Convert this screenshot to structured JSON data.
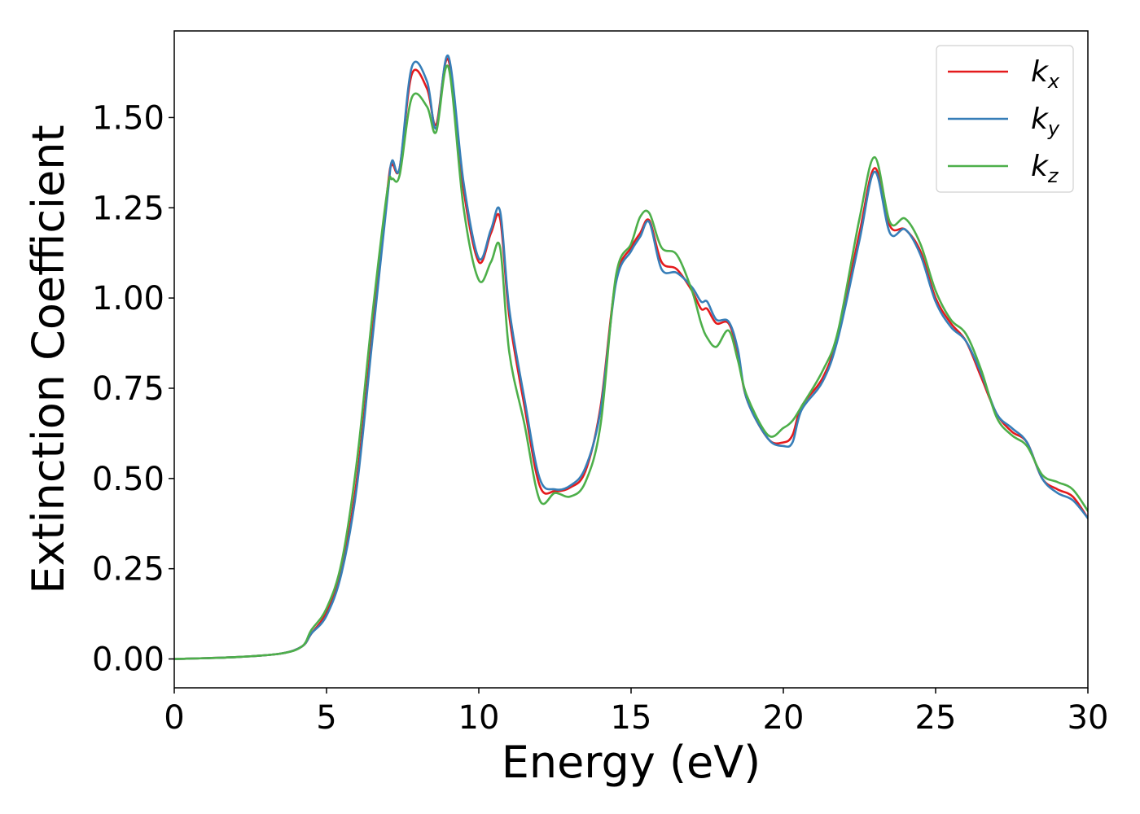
{
  "chart_data": {
    "type": "line",
    "xlabel": "Energy (eV)",
    "ylabel": "Extinction Coefficient",
    "xlim": [
      0,
      30
    ],
    "ylim": [
      -0.08,
      1.74
    ],
    "x_ticks": [
      0,
      5,
      10,
      15,
      20,
      25,
      30
    ],
    "x_tick_labels": [
      "0",
      "5",
      "10",
      "15",
      "20",
      "25",
      "30"
    ],
    "y_ticks": [
      0.0,
      0.25,
      0.5,
      0.75,
      1.0,
      1.25,
      1.5
    ],
    "y_tick_labels": [
      "0.00",
      "0.25",
      "0.50",
      "0.75",
      "1.00",
      "1.25",
      "1.50"
    ],
    "grid": false,
    "legend_position": "top-right",
    "series": [
      {
        "name": "kx",
        "label_main": "k",
        "label_sub": "x",
        "color": "#e41a1c",
        "points": [
          [
            0,
            0.0
          ],
          [
            2,
            0.005
          ],
          [
            3.5,
            0.015
          ],
          [
            4.2,
            0.035
          ],
          [
            4.5,
            0.07
          ],
          [
            5,
            0.13
          ],
          [
            5.5,
            0.25
          ],
          [
            6,
            0.5
          ],
          [
            6.5,
            0.9
          ],
          [
            7,
            1.3
          ],
          [
            7.15,
            1.37
          ],
          [
            7.4,
            1.36
          ],
          [
            7.8,
            1.62
          ],
          [
            8.3,
            1.58
          ],
          [
            8.6,
            1.48
          ],
          [
            9.0,
            1.66
          ],
          [
            9.5,
            1.3
          ],
          [
            10.0,
            1.1
          ],
          [
            10.4,
            1.18
          ],
          [
            10.7,
            1.22
          ],
          [
            11.0,
            0.95
          ],
          [
            11.5,
            0.7
          ],
          [
            12.0,
            0.48
          ],
          [
            12.5,
            0.465
          ],
          [
            13.0,
            0.475
          ],
          [
            13.5,
            0.52
          ],
          [
            14.0,
            0.7
          ],
          [
            14.5,
            1.05
          ],
          [
            15.0,
            1.14
          ],
          [
            15.3,
            1.18
          ],
          [
            15.6,
            1.215
          ],
          [
            16.0,
            1.1
          ],
          [
            16.5,
            1.08
          ],
          [
            17.0,
            1.02
          ],
          [
            17.3,
            0.97
          ],
          [
            17.5,
            0.97
          ],
          [
            17.8,
            0.93
          ],
          [
            18.2,
            0.93
          ],
          [
            18.5,
            0.85
          ],
          [
            18.8,
            0.72
          ],
          [
            19.5,
            0.61
          ],
          [
            20.0,
            0.6
          ],
          [
            20.3,
            0.62
          ],
          [
            20.6,
            0.7
          ],
          [
            21.3,
            0.78
          ],
          [
            21.8,
            0.9
          ],
          [
            22.5,
            1.18
          ],
          [
            23.0,
            1.36
          ],
          [
            23.5,
            1.2
          ],
          [
            24.0,
            1.19
          ],
          [
            24.5,
            1.13
          ],
          [
            25.0,
            1.0
          ],
          [
            25.5,
            0.93
          ],
          [
            26.0,
            0.88
          ],
          [
            26.5,
            0.78
          ],
          [
            27.0,
            0.68
          ],
          [
            27.5,
            0.63
          ],
          [
            28.0,
            0.6
          ],
          [
            28.5,
            0.5
          ],
          [
            29.0,
            0.47
          ],
          [
            29.5,
            0.45
          ],
          [
            30.0,
            0.39
          ]
        ]
      },
      {
        "name": "ky",
        "label_main": "k",
        "label_sub": "y",
        "color": "#377eb8",
        "points": [
          [
            0,
            0.0
          ],
          [
            2,
            0.005
          ],
          [
            3.5,
            0.015
          ],
          [
            4.2,
            0.035
          ],
          [
            4.5,
            0.07
          ],
          [
            5,
            0.12
          ],
          [
            5.5,
            0.24
          ],
          [
            6,
            0.48
          ],
          [
            6.5,
            0.88
          ],
          [
            7,
            1.28
          ],
          [
            7.15,
            1.38
          ],
          [
            7.4,
            1.36
          ],
          [
            7.8,
            1.64
          ],
          [
            8.3,
            1.6
          ],
          [
            8.6,
            1.47
          ],
          [
            9.0,
            1.67
          ],
          [
            9.5,
            1.32
          ],
          [
            10.0,
            1.11
          ],
          [
            10.4,
            1.19
          ],
          [
            10.7,
            1.24
          ],
          [
            11.0,
            0.97
          ],
          [
            11.5,
            0.72
          ],
          [
            12.0,
            0.5
          ],
          [
            12.5,
            0.47
          ],
          [
            13.0,
            0.48
          ],
          [
            13.5,
            0.53
          ],
          [
            14.0,
            0.69
          ],
          [
            14.5,
            1.04
          ],
          [
            15.0,
            1.13
          ],
          [
            15.3,
            1.17
          ],
          [
            15.6,
            1.21
          ],
          [
            16.0,
            1.08
          ],
          [
            16.5,
            1.07
          ],
          [
            17.0,
            1.03
          ],
          [
            17.3,
            0.99
          ],
          [
            17.5,
            0.99
          ],
          [
            17.8,
            0.94
          ],
          [
            18.2,
            0.935
          ],
          [
            18.5,
            0.86
          ],
          [
            18.8,
            0.72
          ],
          [
            19.5,
            0.61
          ],
          [
            20.0,
            0.59
          ],
          [
            20.3,
            0.6
          ],
          [
            20.6,
            0.69
          ],
          [
            21.3,
            0.77
          ],
          [
            21.8,
            0.89
          ],
          [
            22.5,
            1.16
          ],
          [
            23.0,
            1.35
          ],
          [
            23.5,
            1.18
          ],
          [
            24.0,
            1.19
          ],
          [
            24.5,
            1.12
          ],
          [
            25.0,
            0.99
          ],
          [
            25.5,
            0.92
          ],
          [
            26.0,
            0.88
          ],
          [
            26.5,
            0.79
          ],
          [
            27.0,
            0.68
          ],
          [
            27.5,
            0.64
          ],
          [
            28.0,
            0.6
          ],
          [
            28.5,
            0.5
          ],
          [
            29.0,
            0.46
          ],
          [
            29.5,
            0.44
          ],
          [
            30.0,
            0.39
          ]
        ]
      },
      {
        "name": "kz",
        "label_main": "k",
        "label_sub": "z",
        "color": "#4daf4a",
        "points": [
          [
            0,
            0.0
          ],
          [
            2,
            0.005
          ],
          [
            3.5,
            0.015
          ],
          [
            4.2,
            0.035
          ],
          [
            4.5,
            0.08
          ],
          [
            5,
            0.14
          ],
          [
            5.5,
            0.27
          ],
          [
            6,
            0.55
          ],
          [
            6.5,
            0.95
          ],
          [
            7,
            1.3
          ],
          [
            7.15,
            1.33
          ],
          [
            7.4,
            1.34
          ],
          [
            7.8,
            1.555
          ],
          [
            8.3,
            1.53
          ],
          [
            8.6,
            1.46
          ],
          [
            9.0,
            1.64
          ],
          [
            9.5,
            1.25
          ],
          [
            10.0,
            1.05
          ],
          [
            10.4,
            1.1
          ],
          [
            10.7,
            1.14
          ],
          [
            11.0,
            0.85
          ],
          [
            11.5,
            0.65
          ],
          [
            12.0,
            0.44
          ],
          [
            12.5,
            0.46
          ],
          [
            13.0,
            0.45
          ],
          [
            13.5,
            0.49
          ],
          [
            14.0,
            0.65
          ],
          [
            14.5,
            1.06
          ],
          [
            15.0,
            1.15
          ],
          [
            15.3,
            1.225
          ],
          [
            15.6,
            1.235
          ],
          [
            16.0,
            1.14
          ],
          [
            16.5,
            1.12
          ],
          [
            17.0,
            1.02
          ],
          [
            17.3,
            0.93
          ],
          [
            17.5,
            0.89
          ],
          [
            17.8,
            0.865
          ],
          [
            18.2,
            0.91
          ],
          [
            18.5,
            0.83
          ],
          [
            18.8,
            0.73
          ],
          [
            19.5,
            0.62
          ],
          [
            20.0,
            0.64
          ],
          [
            20.3,
            0.66
          ],
          [
            20.6,
            0.7
          ],
          [
            21.3,
            0.8
          ],
          [
            21.8,
            0.91
          ],
          [
            22.5,
            1.22
          ],
          [
            23.0,
            1.39
          ],
          [
            23.5,
            1.21
          ],
          [
            24.0,
            1.22
          ],
          [
            24.5,
            1.15
          ],
          [
            25.0,
            1.02
          ],
          [
            25.5,
            0.94
          ],
          [
            26.0,
            0.9
          ],
          [
            26.5,
            0.8
          ],
          [
            27.0,
            0.67
          ],
          [
            27.5,
            0.62
          ],
          [
            28.0,
            0.59
          ],
          [
            28.5,
            0.51
          ],
          [
            29.0,
            0.49
          ],
          [
            29.5,
            0.47
          ],
          [
            30.0,
            0.41
          ]
        ]
      }
    ]
  }
}
